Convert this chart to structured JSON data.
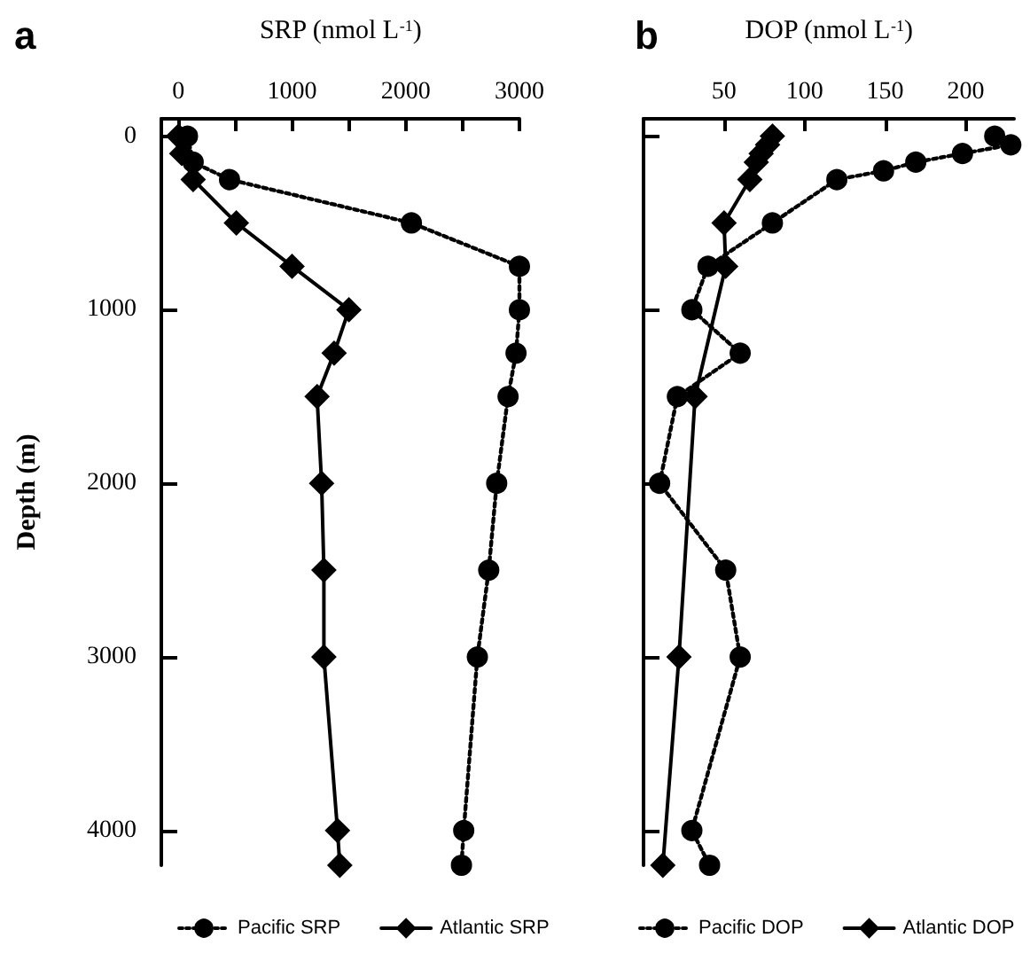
{
  "chart_data": [
    {
      "type": "line",
      "title": "a",
      "xlabel": "SRP (nmol L$^{-1}$)",
      "ylabel": "Depth (m)",
      "xlim": [
        -150,
        3000
      ],
      "xticks": [
        0,
        {
          "value": 500,
          "label": null
        },
        1000,
        {
          "value": 1500,
          "label": null
        },
        2000,
        {
          "value": 2500,
          "label": null
        },
        3000
      ],
      "ylim": [
        4200,
        -100
      ],
      "yticks": [
        0,
        1000,
        2000,
        3000,
        4000
      ],
      "grid": false,
      "legend": "bottom",
      "series": [
        {
          "name": "Pacific SRP",
          "color": "#000000",
          "marker": "circle",
          "line_style": "dotted",
          "x": [
            80,
            130,
            450,
            2050,
            3000,
            3000,
            2970,
            2900,
            2800,
            2730,
            2630,
            2510,
            2490
          ],
          "values": [
            0,
            150,
            250,
            500,
            750,
            1000,
            1250,
            1500,
            2000,
            2500,
            3000,
            4000,
            4200
          ]
        },
        {
          "name": "Atlantic SRP",
          "color": "#000000",
          "marker": "diamond",
          "line_style": "solid",
          "x": [
            0,
            30,
            130,
            510,
            1000,
            1500,
            1370,
            1220,
            1260,
            1280,
            1280,
            1400,
            1420
          ],
          "values": [
            0,
            100,
            250,
            500,
            750,
            1000,
            1250,
            1500,
            2000,
            2500,
            3000,
            4000,
            4200
          ]
        }
      ]
    },
    {
      "type": "line",
      "title": "b",
      "xlabel": "DOP (nmol L$^{-1}$)",
      "xlim": [
        0,
        230
      ],
      "xticks": [
        50,
        100,
        150,
        200
      ],
      "ylim": [
        4200,
        -100
      ],
      "yticks": [
        0,
        1000,
        2000,
        3000,
        4000
      ],
      "tick_labels": "x",
      "grid": false,
      "legend": "bottom",
      "series": [
        {
          "name": "Pacific DOP",
          "color": "#000000",
          "marker": "circle",
          "line_style": "dotted",
          "x": [
            218,
            228,
            198,
            169,
            149,
            120,
            80,
            40,
            30,
            60,
            21,
            10,
            51,
            60,
            30,
            41
          ],
          "values": [
            0,
            50,
            100,
            150,
            200,
            250,
            500,
            750,
            1000,
            1250,
            1500,
            2000,
            2500,
            3000,
            4000,
            4200
          ]
        },
        {
          "name": "Atlantic DOP",
          "color": "#000000",
          "marker": "diamond",
          "line_style": "solid",
          "x": [
            80,
            77,
            73,
            70,
            66,
            50,
            51,
            32,
            22,
            12
          ],
          "values": [
            0,
            50,
            100,
            150,
            250,
            500,
            750,
            1500,
            3000,
            4200
          ]
        }
      ]
    }
  ]
}
